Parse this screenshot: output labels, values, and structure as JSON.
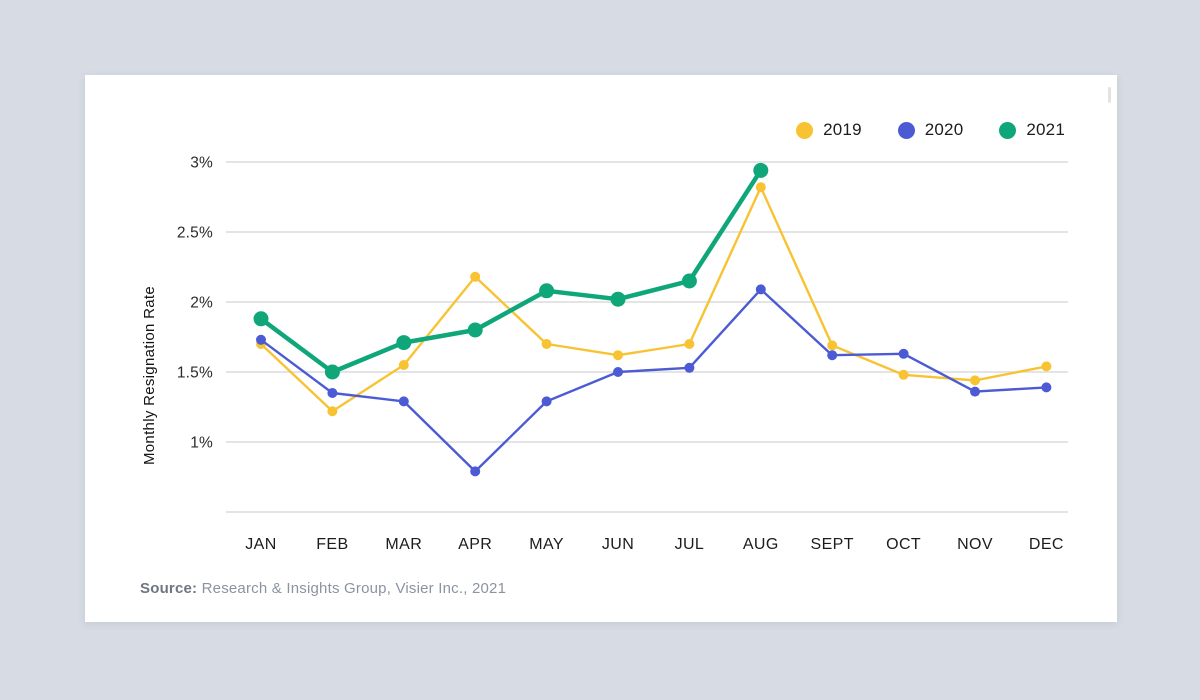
{
  "page": {
    "background": "#d7dce4",
    "card_background": "#ffffff"
  },
  "legend": {
    "position": "top-right",
    "items": [
      {
        "label": "2019",
        "color": "#F8C333"
      },
      {
        "label": "2020",
        "color": "#4C5BD4"
      },
      {
        "label": "2021",
        "color": "#0FA77A"
      }
    ]
  },
  "chart_data": {
    "type": "line",
    "title": "",
    "xlabel": "",
    "ylabel": "Monthly Resignation Rate",
    "categories": [
      "JAN",
      "FEB",
      "MAR",
      "APR",
      "MAY",
      "JUN",
      "JUL",
      "AUG",
      "SEPT",
      "OCT",
      "NOV",
      "DEC"
    ],
    "yticks": [
      {
        "label": "3%",
        "value": 3
      },
      {
        "label": "2.5%",
        "value": 2.5
      },
      {
        "label": "2%",
        "value": 2
      },
      {
        "label": "1.5%",
        "value": 1.5
      },
      {
        "label": "1%",
        "value": 1
      }
    ],
    "baseline_value": 0.5,
    "ylim": [
      0.5,
      3.15
    ],
    "grid": true,
    "legend_position": "top-right",
    "grid_color": "#dbdbdb",
    "tick_color": "#2a2a2c",
    "series": [
      {
        "name": "2019",
        "color": "#F8C333",
        "line_width": 2.4,
        "dot_radius": 5,
        "values": [
          1.7,
          1.22,
          1.55,
          2.18,
          1.7,
          1.62,
          1.7,
          2.82,
          1.69,
          1.48,
          1.44,
          1.54
        ]
      },
      {
        "name": "2020",
        "color": "#4C5BD4",
        "line_width": 2.4,
        "dot_radius": 5,
        "values": [
          1.73,
          1.35,
          1.29,
          0.79,
          1.29,
          1.5,
          1.53,
          2.09,
          1.62,
          1.63,
          1.36,
          1.39
        ]
      },
      {
        "name": "2021",
        "color": "#0FA77A",
        "line_width": 4.5,
        "dot_radius": 7.5,
        "values": [
          1.88,
          1.5,
          1.71,
          1.8,
          2.08,
          2.02,
          2.15,
          2.94,
          null,
          null,
          null,
          null
        ]
      }
    ]
  },
  "source": {
    "label": "Source:",
    "text": " Research & Insights Group, Visier Inc., 2021"
  }
}
